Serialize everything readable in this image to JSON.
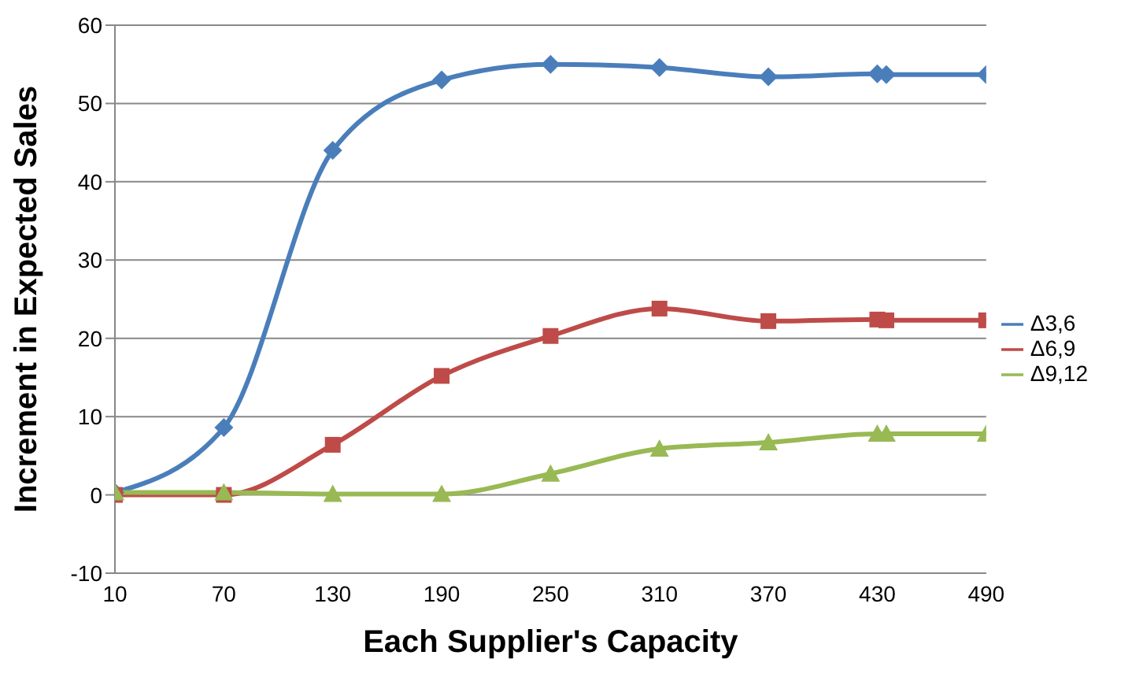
{
  "chart_data": {
    "type": "line",
    "xlabel": "Each Supplier's Capacity",
    "ylabel": "Increment in Expected Sales",
    "x": [
      10,
      70,
      130,
      190,
      250,
      310,
      370,
      430,
      435,
      490
    ],
    "xlim": [
      10,
      490
    ],
    "xticks": [
      10,
      70,
      130,
      190,
      250,
      310,
      370,
      430,
      490
    ],
    "ylim": [
      -10,
      60
    ],
    "yticks": [
      -10,
      0,
      10,
      20,
      30,
      40,
      50,
      60
    ],
    "grid": "y",
    "legend": "right",
    "line_style": "solid",
    "series": [
      {
        "name": "Δ3,6",
        "color": "#4a7ebb",
        "marker": "diamond",
        "values": [
          0.3,
          8.6,
          44,
          53,
          55,
          54.6,
          53.4,
          53.8,
          53.7,
          53.7
        ]
      },
      {
        "name": "Δ6,9",
        "color": "#be4b48",
        "marker": "square",
        "values": [
          0,
          0,
          6.4,
          15.2,
          20.3,
          23.8,
          22.2,
          22.4,
          22.3,
          22.3
        ]
      },
      {
        "name": "Δ9,12",
        "color": "#98b954",
        "marker": "triangle",
        "values": [
          0.3,
          0.3,
          0.1,
          0.1,
          2.7,
          5.9,
          6.7,
          7.8,
          7.8,
          7.8
        ]
      }
    ]
  }
}
